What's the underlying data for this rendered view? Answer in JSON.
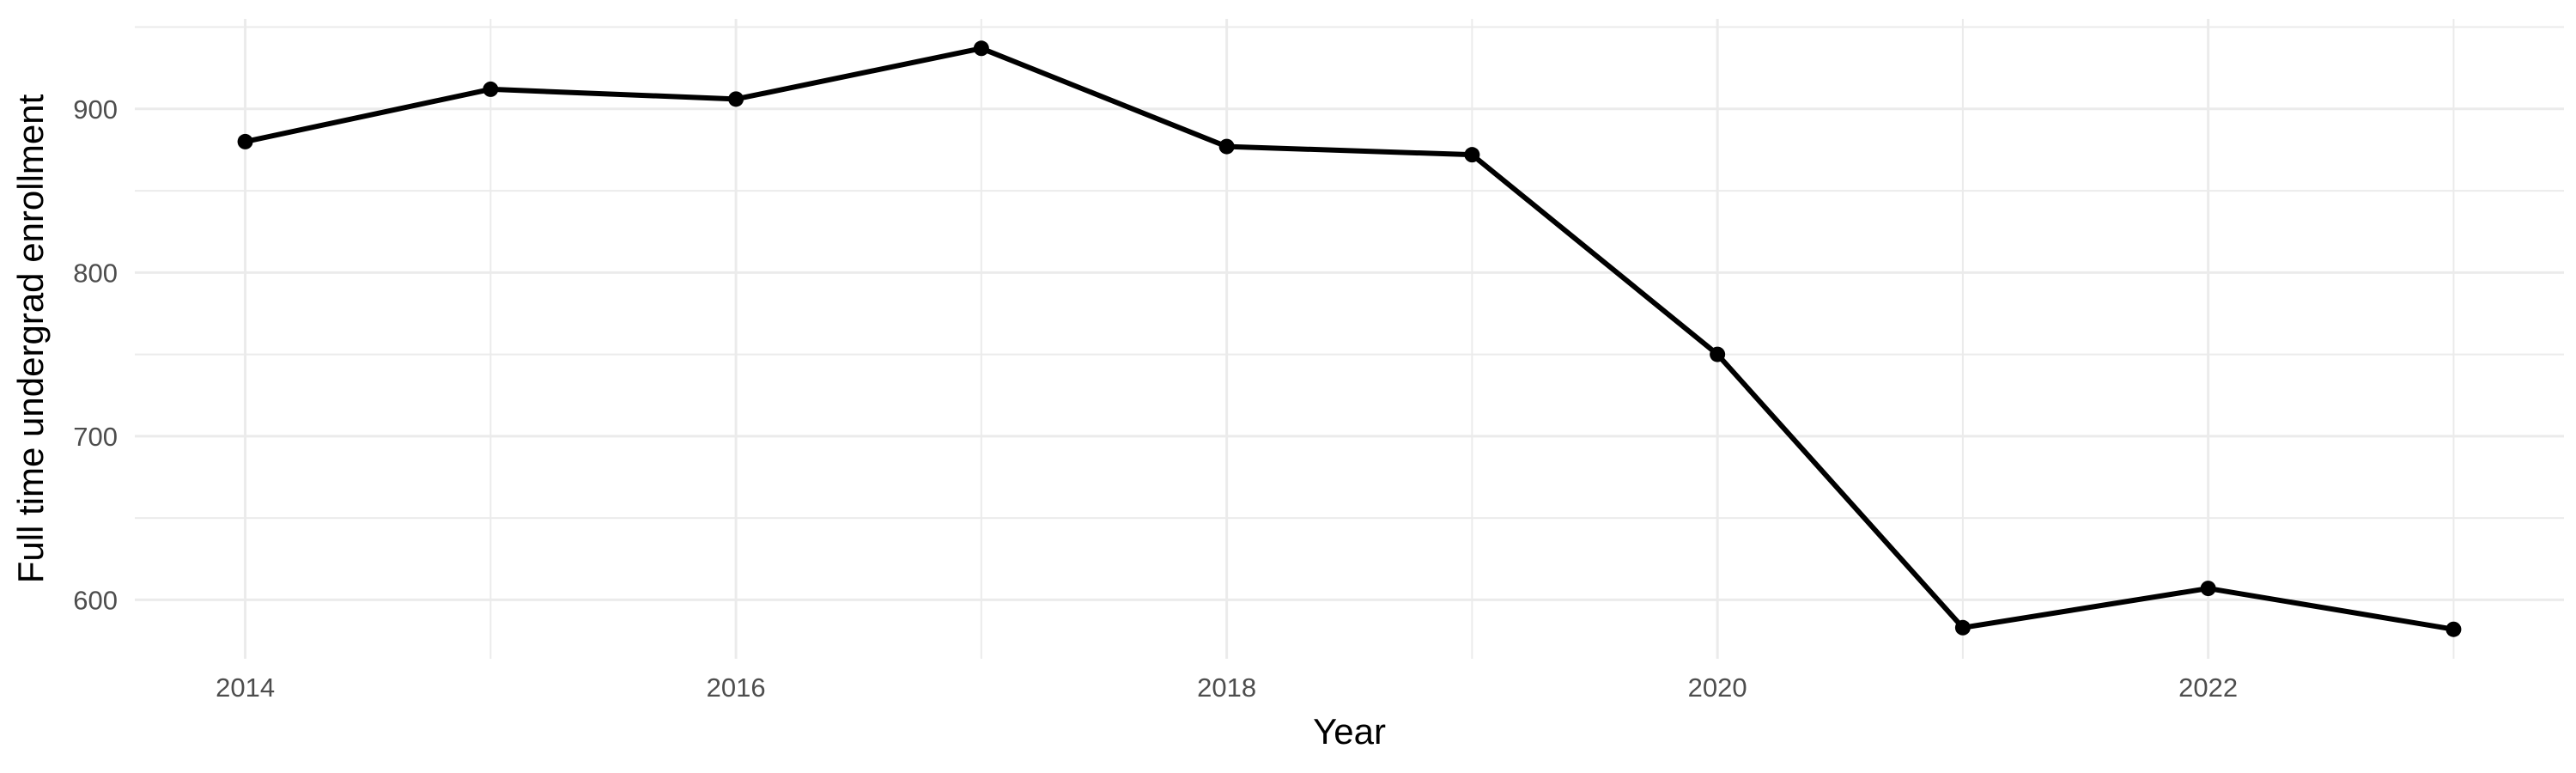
{
  "chart_data": {
    "type": "line",
    "title": "",
    "xlabel": "Year",
    "ylabel": "Full time undergrad enrollment",
    "x": [
      2014,
      2015,
      2016,
      2017,
      2018,
      2019,
      2020,
      2021,
      2022,
      2023
    ],
    "values": [
      880,
      912,
      906,
      937,
      877,
      872,
      750,
      583,
      607,
      582
    ],
    "series_name": "Full time undergrad enrollment",
    "xlim": [
      2013.55,
      2023.45
    ],
    "ylim": [
      564,
      955
    ],
    "x_major_ticks": {
      "values": [
        2014,
        2016,
        2018,
        2020,
        2022
      ],
      "labels": [
        "2014",
        "2016",
        "2018",
        "2020",
        "2022"
      ]
    },
    "y_major_ticks": {
      "values": [
        900,
        800,
        700,
        600
      ],
      "labels": [
        "900",
        "800",
        "700",
        "600"
      ]
    },
    "x_minor_breaks": [
      2015,
      2017,
      2019,
      2021,
      2023
    ],
    "y_minor_breaks": [
      950,
      850,
      750,
      650
    ],
    "grid": "major-and-minor",
    "legend": "none",
    "marker": "filled-circle",
    "colors": {
      "line": "#000000",
      "point": "#000000",
      "grid": "#EBEBEB",
      "tick_label": "#4D4D4D",
      "axis_title": "#000000",
      "background": "#FFFFFF"
    }
  }
}
